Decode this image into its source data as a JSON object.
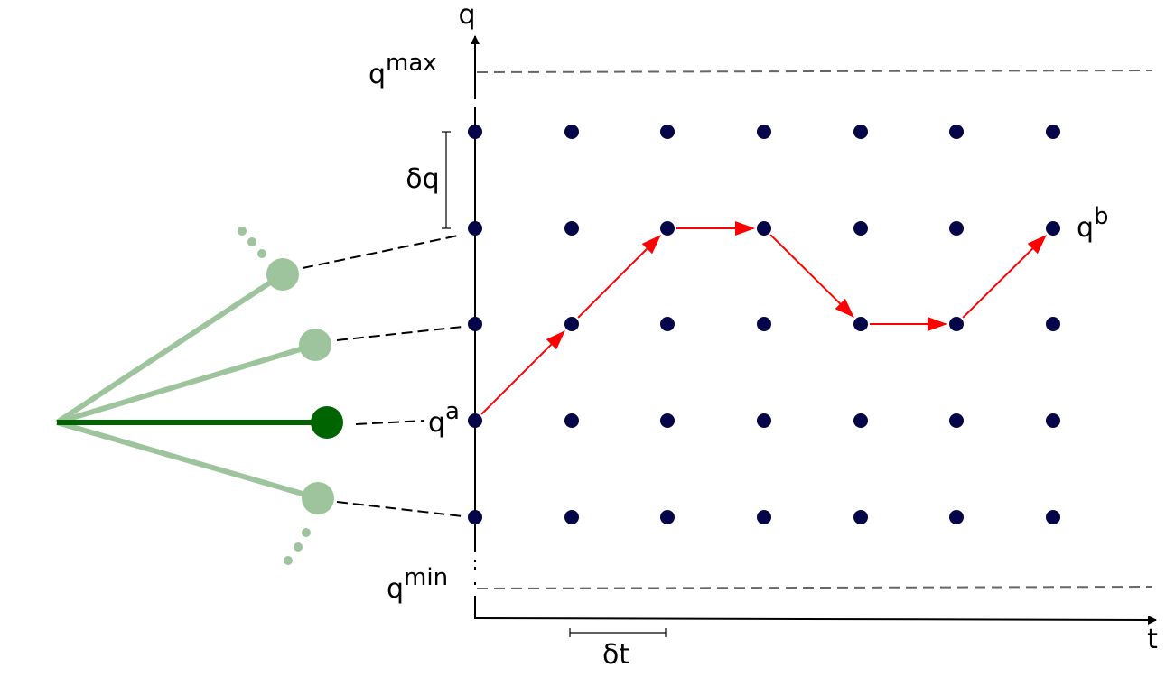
{
  "axes": {
    "y_label": "q",
    "x_label": "t"
  },
  "bounds": {
    "max": {
      "base": "q",
      "sup": "max"
    },
    "min": {
      "base": "q",
      "sup": "min"
    }
  },
  "steps": {
    "dq": "δq",
    "dt": "δt"
  },
  "points": {
    "start": {
      "base": "q",
      "sup": "a"
    },
    "end": {
      "base": "q",
      "sup": "b"
    }
  }
}
